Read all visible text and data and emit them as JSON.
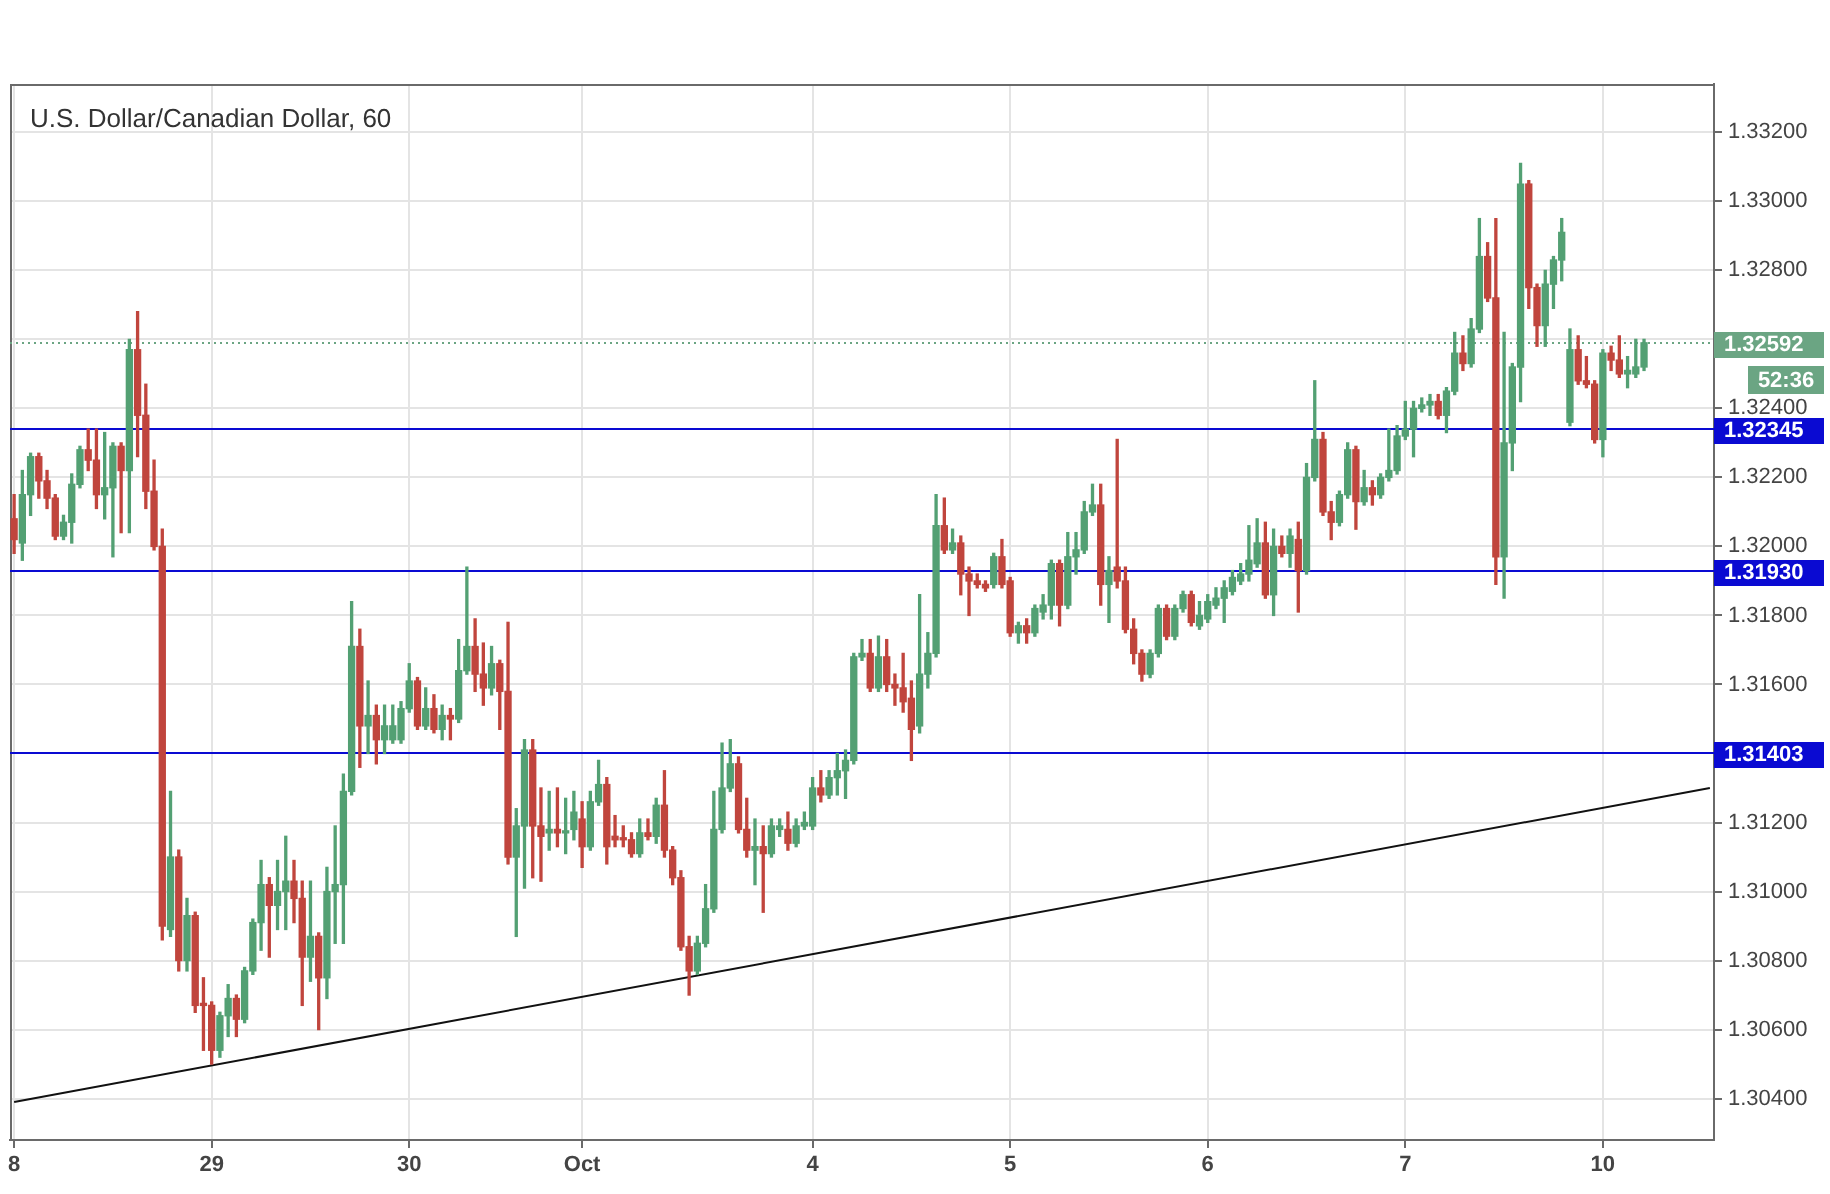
{
  "chart_data": {
    "type": "candlestick",
    "title": "U.S. Dollar/Canadian Dollar, 60",
    "categories": [
      "8",
      null,
      null,
      null,
      null,
      null,
      null,
      null,
      null,
      null,
      null,
      null,
      null,
      null,
      null,
      null,
      null,
      null,
      null,
      null,
      null,
      null,
      null,
      null,
      "29",
      null,
      null,
      null,
      null,
      null,
      null,
      null,
      null,
      null,
      null,
      null,
      null,
      null,
      null,
      null,
      null,
      null,
      null,
      null,
      null,
      null,
      null,
      null,
      "30",
      null,
      null,
      null,
      null,
      null,
      null,
      null,
      null,
      null,
      null,
      null,
      null,
      null,
      null,
      null,
      null,
      null,
      null,
      null,
      null,
      "Oct",
      null,
      null,
      null,
      null,
      null,
      null,
      null,
      null,
      null,
      null,
      null,
      null,
      null,
      null,
      null,
      null,
      null,
      null,
      null,
      null,
      null,
      null,
      null,
      null,
      null,
      null,
      null,
      "4",
      null,
      null,
      null,
      null,
      null,
      null,
      null,
      null,
      null,
      null,
      null,
      null,
      null,
      null,
      null,
      null,
      null,
      null,
      null,
      null,
      null,
      null,
      null,
      "5",
      null,
      null,
      null,
      null,
      null,
      null,
      null,
      null,
      null,
      null,
      null,
      null,
      null,
      null,
      null,
      null,
      null,
      null,
      null,
      null,
      null,
      null,
      null,
      "6",
      null,
      null,
      null,
      null,
      null,
      null,
      null,
      null,
      null,
      null,
      null,
      null,
      null,
      null,
      null,
      null,
      null,
      null,
      null,
      null,
      null,
      null,
      null,
      "7",
      null,
      null,
      null,
      null,
      null,
      null,
      null,
      null,
      null,
      null,
      null,
      null,
      null,
      null,
      null,
      null,
      null,
      null,
      null,
      null,
      null,
      null,
      null,
      "10",
      null,
      null,
      null,
      null,
      null,
      null,
      null,
      null,
      null,
      null,
      null,
      null,
      null
    ],
    "ohlc": [
      [
        1.3208,
        1.3215,
        1.3198,
        1.3202
      ],
      [
        1.3201,
        1.3222,
        1.3196,
        1.3215
      ],
      [
        1.3215,
        1.3227,
        1.3209,
        1.3226
      ],
      [
        1.3226,
        1.3227,
        1.3214,
        1.3219
      ],
      [
        1.3219,
        1.3222,
        1.3211,
        1.3214
      ],
      [
        1.3214,
        1.3215,
        1.3202,
        1.3203
      ],
      [
        1.3203,
        1.3209,
        1.3202,
        1.3207
      ],
      [
        1.3207,
        1.3221,
        1.3201,
        1.3218
      ],
      [
        1.3218,
        1.3229,
        1.3217,
        1.3228
      ],
      [
        1.3228,
        1.3234,
        1.3222,
        1.3225
      ],
      [
        1.3225,
        1.3234,
        1.3211,
        1.3215
      ],
      [
        1.3215,
        1.3233,
        1.3208,
        1.3217
      ],
      [
        1.3217,
        1.323,
        1.3197,
        1.3229
      ],
      [
        1.3229,
        1.323,
        1.3204,
        1.3222
      ],
      [
        1.3222,
        1.326,
        1.3204,
        1.3257
      ],
      [
        1.3257,
        1.3268,
        1.3226,
        1.3238
      ],
      [
        1.3238,
        1.3247,
        1.3211,
        1.3216
      ],
      [
        1.3216,
        1.3225,
        1.3199,
        1.32
      ],
      [
        1.32,
        1.3205,
        1.3086,
        1.309
      ],
      [
        1.3089,
        1.3129,
        1.3087,
        1.311
      ],
      [
        1.311,
        1.3112,
        1.3077,
        1.308
      ],
      [
        1.308,
        1.3098,
        1.3077,
        1.3093
      ],
      [
        1.3093,
        1.3094,
        1.3065,
        1.3067
      ],
      [
        1.3067,
        1.3075,
        1.3054,
        1.3067
      ],
      [
        1.3067,
        1.3068,
        1.305,
        1.3054
      ],
      [
        1.3054,
        1.3065,
        1.3052,
        1.3064
      ],
      [
        1.3064,
        1.3073,
        1.3058,
        1.3069
      ],
      [
        1.3069,
        1.307,
        1.3058,
        1.3063
      ],
      [
        1.3063,
        1.3078,
        1.3062,
        1.3077
      ],
      [
        1.3077,
        1.3092,
        1.3076,
        1.3091
      ],
      [
        1.3091,
        1.3109,
        1.3083,
        1.3102
      ],
      [
        1.3102,
        1.3104,
        1.3081,
        1.3096
      ],
      [
        1.3096,
        1.3109,
        1.3089,
        1.31
      ],
      [
        1.31,
        1.3116,
        1.3089,
        1.3103
      ],
      [
        1.3103,
        1.3109,
        1.3091,
        1.3098
      ],
      [
        1.3098,
        1.3103,
        1.3067,
        1.3081
      ],
      [
        1.3081,
        1.3103,
        1.3074,
        1.3087
      ],
      [
        1.3087,
        1.3088,
        1.306,
        1.3075
      ],
      [
        1.3075,
        1.3107,
        1.3069,
        1.31
      ],
      [
        1.31,
        1.3119,
        1.3085,
        1.3102
      ],
      [
        1.3102,
        1.3134,
        1.3085,
        1.3129
      ],
      [
        1.3129,
        1.3184,
        1.3128,
        1.3171
      ],
      [
        1.3171,
        1.3176,
        1.3136,
        1.3148
      ],
      [
        1.3148,
        1.3161,
        1.314,
        1.3151
      ],
      [
        1.3151,
        1.3154,
        1.3137,
        1.3144
      ],
      [
        1.3144,
        1.3154,
        1.314,
        1.3148
      ],
      [
        1.3144,
        1.3154,
        1.3143,
        1.3148
      ],
      [
        1.3144,
        1.3155,
        1.3143,
        1.3153
      ],
      [
        1.3153,
        1.3166,
        1.3152,
        1.3161
      ],
      [
        1.3161,
        1.3162,
        1.3147,
        1.3148
      ],
      [
        1.3148,
        1.3159,
        1.3147,
        1.3153
      ],
      [
        1.3153,
        1.3157,
        1.3146,
        1.3147
      ],
      [
        1.3147,
        1.3154,
        1.3144,
        1.3151
      ],
      [
        1.3151,
        1.3153,
        1.3144,
        1.315
      ],
      [
        1.315,
        1.3173,
        1.3149,
        1.3164
      ],
      [
        1.3164,
        1.3194,
        1.3163,
        1.3171
      ],
      [
        1.3171,
        1.3179,
        1.3158,
        1.3163
      ],
      [
        1.3163,
        1.3172,
        1.3154,
        1.3159
      ],
      [
        1.3159,
        1.3171,
        1.3157,
        1.3166
      ],
      [
        1.3166,
        1.3167,
        1.3147,
        1.3158
      ],
      [
        1.3158,
        1.3178,
        1.3108,
        1.311
      ],
      [
        1.311,
        1.3124,
        1.3087,
        1.3119
      ],
      [
        1.3119,
        1.3144,
        1.3101,
        1.3141
      ],
      [
        1.3141,
        1.3144,
        1.3104,
        1.3119
      ],
      [
        1.3119,
        1.313,
        1.3103,
        1.3116
      ],
      [
        1.3117,
        1.3129,
        1.3112,
        1.3118
      ],
      [
        1.3118,
        1.313,
        1.3113,
        1.3117
      ],
      [
        1.3117,
        1.3127,
        1.3111,
        1.3117
      ],
      [
        1.3118,
        1.3129,
        1.3115,
        1.3123
      ],
      [
        1.3121,
        1.3126,
        1.3107,
        1.3113
      ],
      [
        1.3113,
        1.3129,
        1.3112,
        1.3126
      ],
      [
        1.3126,
        1.3138,
        1.3125,
        1.3131
      ],
      [
        1.3131,
        1.3133,
        1.3108,
        1.3113
      ],
      [
        1.3116,
        1.3122,
        1.3113,
        1.3115
      ],
      [
        1.3115,
        1.3119,
        1.3113,
        1.3115
      ],
      [
        1.3115,
        1.3117,
        1.311,
        1.3111
      ],
      [
        1.3111,
        1.3121,
        1.311,
        1.3117
      ],
      [
        1.3117,
        1.3121,
        1.3115,
        1.3116
      ],
      [
        1.3116,
        1.3127,
        1.3114,
        1.3125
      ],
      [
        1.3125,
        1.3135,
        1.311,
        1.3112
      ],
      [
        1.3112,
        1.3113,
        1.3102,
        1.3104
      ],
      [
        1.3104,
        1.3106,
        1.3083,
        1.3084
      ],
      [
        1.3084,
        1.3087,
        1.307,
        1.3077
      ],
      [
        1.3077,
        1.3087,
        1.3076,
        1.3085
      ],
      [
        1.3085,
        1.3102,
        1.3084,
        1.3095
      ],
      [
        1.3095,
        1.3129,
        1.3094,
        1.3118
      ],
      [
        1.3118,
        1.3143,
        1.3117,
        1.313
      ],
      [
        1.313,
        1.3144,
        1.3129,
        1.3137
      ],
      [
        1.3137,
        1.3139,
        1.3117,
        1.3118
      ],
      [
        1.3118,
        1.3127,
        1.311,
        1.3112
      ],
      [
        1.3112,
        1.3121,
        1.3102,
        1.3113
      ],
      [
        1.3113,
        1.3119,
        1.3094,
        1.3111
      ],
      [
        1.3111,
        1.3121,
        1.311,
        1.3119
      ],
      [
        1.3118,
        1.3121,
        1.3116,
        1.3119
      ],
      [
        1.3118,
        1.3123,
        1.3112,
        1.3114
      ],
      [
        1.3114,
        1.3121,
        1.3113,
        1.3119
      ],
      [
        1.3119,
        1.3123,
        1.3118,
        1.312
      ],
      [
        1.3119,
        1.3133,
        1.3118,
        1.313
      ],
      [
        1.313,
        1.3135,
        1.3126,
        1.3128
      ],
      [
        1.3128,
        1.3135,
        1.3127,
        1.3133
      ],
      [
        1.3133,
        1.314,
        1.3128,
        1.3135
      ],
      [
        1.3135,
        1.3141,
        1.3127,
        1.3138
      ],
      [
        1.3138,
        1.3169,
        1.3137,
        1.3168
      ],
      [
        1.3168,
        1.3173,
        1.3167,
        1.3169
      ],
      [
        1.3169,
        1.3173,
        1.3158,
        1.3159
      ],
      [
        1.3159,
        1.3174,
        1.3158,
        1.3168
      ],
      [
        1.3168,
        1.3173,
        1.3158,
        1.316
      ],
      [
        1.316,
        1.3163,
        1.3154,
        1.3159
      ],
      [
        1.3159,
        1.3169,
        1.3152,
        1.3155
      ],
      [
        1.3156,
        1.3161,
        1.3138,
        1.3147
      ],
      [
        1.3148,
        1.3186,
        1.3146,
        1.3163
      ],
      [
        1.3163,
        1.3175,
        1.3159,
        1.3169
      ],
      [
        1.3169,
        1.3215,
        1.3168,
        1.3206
      ],
      [
        1.3206,
        1.3214,
        1.3198,
        1.3199
      ],
      [
        1.3199,
        1.3205,
        1.3198,
        1.3201
      ],
      [
        1.3201,
        1.3203,
        1.3186,
        1.3192
      ],
      [
        1.3192,
        1.3194,
        1.318,
        1.319
      ],
      [
        1.319,
        1.3192,
        1.3188,
        1.3189
      ],
      [
        1.3189,
        1.319,
        1.3187,
        1.3188
      ],
      [
        1.3189,
        1.3198,
        1.3188,
        1.3197
      ],
      [
        1.3197,
        1.3202,
        1.3188,
        1.3189
      ],
      [
        1.319,
        1.3191,
        1.3174,
        1.3175
      ],
      [
        1.3175,
        1.3178,
        1.3172,
        1.3177
      ],
      [
        1.3177,
        1.3179,
        1.3172,
        1.3175
      ],
      [
        1.3175,
        1.3183,
        1.3174,
        1.3182
      ],
      [
        1.3181,
        1.3186,
        1.3179,
        1.3183
      ],
      [
        1.3183,
        1.3196,
        1.3179,
        1.3195
      ],
      [
        1.3195,
        1.3196,
        1.3177,
        1.3183
      ],
      [
        1.3183,
        1.3204,
        1.3182,
        1.3197
      ],
      [
        1.3197,
        1.3204,
        1.3192,
        1.3199
      ],
      [
        1.3199,
        1.3213,
        1.3198,
        1.321
      ],
      [
        1.321,
        1.3218,
        1.3209,
        1.3212
      ],
      [
        1.3212,
        1.3218,
        1.3183,
        1.3189
      ],
      [
        1.3189,
        1.3197,
        1.3178,
        1.3193
      ],
      [
        1.3194,
        1.3231,
        1.3188,
        1.319
      ],
      [
        1.319,
        1.3194,
        1.3175,
        1.3176
      ],
      [
        1.3176,
        1.3179,
        1.3166,
        1.3169
      ],
      [
        1.3169,
        1.317,
        1.3161,
        1.3163
      ],
      [
        1.3163,
        1.317,
        1.3162,
        1.3169
      ],
      [
        1.3169,
        1.3183,
        1.3168,
        1.3182
      ],
      [
        1.3182,
        1.3183,
        1.3173,
        1.3174
      ],
      [
        1.3174,
        1.3183,
        1.3173,
        1.3182
      ],
      [
        1.3182,
        1.3187,
        1.3181,
        1.3186
      ],
      [
        1.3186,
        1.3187,
        1.3177,
        1.3178
      ],
      [
        1.3177,
        1.3184,
        1.3176,
        1.318
      ],
      [
        1.3179,
        1.3186,
        1.3178,
        1.3184
      ],
      [
        1.3183,
        1.3188,
        1.3182,
        1.3185
      ],
      [
        1.3185,
        1.319,
        1.3178,
        1.3188
      ],
      [
        1.3187,
        1.3193,
        1.3186,
        1.3191
      ],
      [
        1.319,
        1.3195,
        1.3189,
        1.3192
      ],
      [
        1.3192,
        1.3206,
        1.319,
        1.3196
      ],
      [
        1.3195,
        1.3208,
        1.3194,
        1.3201
      ],
      [
        1.3201,
        1.3207,
        1.3185,
        1.3186
      ],
      [
        1.3186,
        1.3205,
        1.318,
        1.32
      ],
      [
        1.32,
        1.3203,
        1.3197,
        1.3198
      ],
      [
        1.3198,
        1.3205,
        1.3194,
        1.3203
      ],
      [
        1.3202,
        1.3207,
        1.3181,
        1.3193
      ],
      [
        1.3193,
        1.3224,
        1.3192,
        1.322
      ],
      [
        1.322,
        1.3248,
        1.3219,
        1.3231
      ],
      [
        1.3231,
        1.3233,
        1.3209,
        1.321
      ],
      [
        1.321,
        1.3213,
        1.3202,
        1.3207
      ],
      [
        1.3207,
        1.3216,
        1.3206,
        1.3215
      ],
      [
        1.3215,
        1.323,
        1.3214,
        1.3228
      ],
      [
        1.3228,
        1.3229,
        1.3205,
        1.3213
      ],
      [
        1.3213,
        1.3222,
        1.3212,
        1.3217
      ],
      [
        1.3217,
        1.3219,
        1.3212,
        1.3215
      ],
      [
        1.3215,
        1.3221,
        1.3214,
        1.322
      ],
      [
        1.322,
        1.3234,
        1.3219,
        1.3222
      ],
      [
        1.3222,
        1.3235,
        1.3221,
        1.3232
      ],
      [
        1.3232,
        1.3242,
        1.3231,
        1.3234
      ],
      [
        1.3234,
        1.3242,
        1.3226,
        1.324
      ],
      [
        1.324,
        1.3243,
        1.3239,
        1.3241
      ],
      [
        1.3241,
        1.3244,
        1.3238,
        1.3242
      ],
      [
        1.3242,
        1.3244,
        1.3237,
        1.3238
      ],
      [
        1.3238,
        1.3246,
        1.3233,
        1.3245
      ],
      [
        1.3245,
        1.3262,
        1.3244,
        1.3256
      ],
      [
        1.3256,
        1.3261,
        1.3251,
        1.3253
      ],
      [
        1.3253,
        1.3266,
        1.3252,
        1.3263
      ],
      [
        1.3263,
        1.3295,
        1.3262,
        1.3284
      ],
      [
        1.3284,
        1.3288,
        1.3271,
        1.3272
      ],
      [
        1.3272,
        1.3295,
        1.3189,
        1.3197
      ],
      [
        1.3197,
        1.3262,
        1.3185,
        1.323
      ],
      [
        1.323,
        1.3253,
        1.3222,
        1.3252
      ],
      [
        1.3252,
        1.3311,
        1.3242,
        1.3305
      ],
      [
        1.3305,
        1.3306,
        1.3269,
        1.3275
      ],
      [
        1.3275,
        1.3276,
        1.3258,
        1.3264
      ],
      [
        1.3264,
        1.328,
        1.3258,
        1.3276
      ],
      [
        1.3276,
        1.3284,
        1.3269,
        1.3283
      ],
      [
        1.3283,
        1.3295,
        1.3277,
        1.3291
      ],
      [
        1.3236,
        1.3263,
        1.3235,
        1.3257
      ],
      [
        1.3257,
        1.3261,
        1.3247,
        1.3248
      ],
      [
        1.3248,
        1.3255,
        1.3246,
        1.3247
      ],
      [
        1.3247,
        1.3248,
        1.323,
        1.3231
      ],
      [
        1.3231,
        1.3257,
        1.3226,
        1.3256
      ],
      [
        1.3256,
        1.3258,
        1.3251,
        1.3254
      ],
      [
        1.3254,
        1.3261,
        1.3249,
        1.325
      ],
      [
        1.325,
        1.3255,
        1.3246,
        1.3251
      ],
      [
        1.325,
        1.326,
        1.3249,
        1.3252
      ],
      [
        1.3252,
        1.326,
        1.3251,
        1.3259
      ],
      null,
      null,
      null,
      null,
      null,
      null,
      null,
      null
    ],
    "colors": [
      "#c0453d",
      "#53a073",
      "#53a073",
      "#c0453d",
      "#c0453d",
      "#c0453d",
      "#53a073",
      "#53a073",
      "#53a073",
      "#c0453d",
      "#c0453d",
      "#53a073",
      "#53a073",
      "#c0453d",
      "#53a073",
      "#c0453d",
      "#c0453d",
      "#c0453d",
      "#c0453d",
      "#53a073",
      "#c0453d",
      "#53a073",
      "#c0453d",
      "#c0453d",
      "#c0453d",
      "#53a073",
      "#53a073",
      "#c0453d",
      "#53a073",
      "#53a073",
      "#53a073",
      "#c0453d",
      "#53a073",
      "#53a073",
      "#c0453d",
      "#c0453d",
      "#53a073",
      "#c0453d",
      "#53a073",
      "#53a073",
      "#53a073",
      "#53a073",
      "#c0453d",
      "#53a073",
      "#c0453d",
      "#53a073",
      "#53a073",
      "#53a073",
      "#53a073",
      "#c0453d",
      "#53a073",
      "#c0453d",
      "#53a073",
      "#c0453d",
      "#53a073",
      "#53a073",
      "#c0453d",
      "#c0453d",
      "#53a073",
      "#c0453d",
      "#c0453d",
      "#53a073",
      "#53a073",
      "#c0453d",
      "#c0453d",
      "#53a073",
      "#c0453d",
      "#53a073",
      "#53a073",
      "#c0453d",
      "#53a073",
      "#53a073",
      "#c0453d",
      "#c0453d",
      "#c0453d",
      "#c0453d",
      "#53a073",
      "#c0453d",
      "#53a073",
      "#c0453d",
      "#c0453d",
      "#c0453d",
      "#c0453d",
      "#53a073",
      "#53a073",
      "#53a073",
      "#53a073",
      "#53a073",
      "#c0453d",
      "#c0453d",
      "#53a073",
      "#c0453d",
      "#53a073",
      "#53a073",
      "#c0453d",
      "#53a073",
      "#53a073",
      "#53a073",
      "#c0453d",
      "#53a073",
      "#53a073",
      "#53a073",
      "#53a073",
      "#53a073",
      "#c0453d",
      "#53a073",
      "#c0453d",
      "#c0453d",
      "#c0453d",
      "#c0453d",
      "#53a073",
      "#53a073",
      "#53a073",
      "#c0453d",
      "#53a073",
      "#c0453d",
      "#c0453d",
      "#c0453d",
      "#c0453d",
      "#53a073",
      "#c0453d",
      "#c0453d",
      "#53a073",
      "#c0453d",
      "#53a073",
      "#53a073",
      "#53a073",
      "#c0453d",
      "#53a073",
      "#53a073",
      "#53a073",
      "#53a073",
      "#c0453d",
      "#53a073",
      "#c0453d",
      "#c0453d",
      "#c0453d",
      "#c0453d",
      "#53a073",
      "#53a073",
      "#c0453d",
      "#53a073",
      "#53a073",
      "#c0453d",
      "#53a073",
      "#53a073",
      "#53a073",
      "#53a073",
      "#53a073",
      "#53a073",
      "#53a073",
      "#53a073",
      "#c0453d",
      "#53a073",
      "#c0453d",
      "#53a073",
      "#c0453d",
      "#53a073",
      "#53a073",
      "#c0453d",
      "#c0453d",
      "#53a073",
      "#53a073",
      "#c0453d",
      "#53a073",
      "#c0453d",
      "#53a073",
      "#53a073",
      "#53a073",
      "#53a073",
      "#53a073",
      "#53a073",
      "#53a073",
      "#c0453d",
      "#53a073",
      "#53a073",
      "#c0453d",
      "#53a073",
      "#53a073",
      "#c0453d",
      "#c0453d",
      "#53a073",
      "#53a073",
      "#53a073",
      "#c0453d",
      "#c0453d",
      "#53a073",
      "#53a073",
      "#53a073",
      "#53a073",
      "#c0453d",
      "#c0453d",
      "#c0453d",
      "#53a073",
      "#c0453d",
      "#c0453d",
      "#53a073",
      "#53a073",
      "#53a073",
      null,
      null,
      null,
      null,
      null,
      null,
      null,
      null
    ],
    "series": [
      {
        "type": "line",
        "color": "#111111",
        "values": [
          1.3039,
          null,
          null,
          null,
          null,
          null,
          null,
          null,
          null,
          null,
          null,
          null,
          null,
          null,
          null,
          null,
          null,
          null,
          null,
          null,
          null,
          null,
          null,
          null,
          null,
          null,
          null,
          null,
          null,
          null,
          null,
          null,
          null,
          null,
          null,
          null,
          null,
          null,
          null,
          null,
          null,
          null,
          null,
          null,
          null,
          null,
          null,
          null,
          null,
          null,
          null,
          null,
          null,
          null,
          null,
          null,
          null,
          null,
          null,
          null,
          null,
          null,
          null,
          null,
          null,
          null,
          null,
          null,
          null,
          null,
          null,
          null,
          null,
          null,
          null,
          null,
          null,
          null,
          null,
          null,
          null,
          null,
          null,
          null,
          null,
          null,
          null,
          null,
          null,
          null,
          null,
          null,
          null,
          null,
          null,
          null,
          null,
          null,
          null,
          null,
          null,
          null,
          null,
          null,
          null,
          null,
          null,
          null,
          null,
          null,
          null,
          null,
          null,
          null,
          null,
          null,
          null,
          null,
          null,
          null,
          null,
          null,
          null,
          null,
          null,
          null,
          null,
          null,
          null,
          null,
          null,
          null,
          null,
          null,
          null,
          null,
          null,
          null,
          null,
          null,
          null,
          null,
          null,
          null,
          null,
          null,
          null,
          null,
          null,
          null,
          null,
          null,
          null,
          null,
          null,
          null,
          null,
          null,
          null,
          null,
          null,
          null,
          null,
          null,
          null,
          null,
          null,
          null,
          null,
          null,
          null,
          null,
          null,
          null,
          null,
          null,
          null,
          null,
          null,
          null,
          null,
          null,
          null,
          null,
          null,
          null,
          null,
          null,
          null,
          null,
          null,
          null,
          null,
          null,
          null,
          null,
          null,
          null,
          null,
          null,
          null,
          null,
          null,
          null,
          null,
          null,
          1.313
        ]
      }
    ],
    "ylim": [
      1.3028,
      1.3334
    ],
    "yticks": [
      {
        "value": 1.304,
        "label": "1.30400"
      },
      {
        "value": 1.306,
        "label": "1.30600"
      },
      {
        "value": 1.308,
        "label": "1.30800"
      },
      {
        "value": 1.31,
        "label": "1.31000"
      },
      {
        "value": 1.312,
        "label": "1.31200"
      },
      {
        "value": 1.314,
        "label": null
      },
      {
        "value": 1.316,
        "label": "1.31600"
      },
      {
        "value": 1.318,
        "label": "1.31800"
      },
      {
        "value": 1.32,
        "label": "1.32000"
      },
      {
        "value": 1.322,
        "label": "1.32200"
      },
      {
        "value": 1.324,
        "label": "1.32400"
      },
      {
        "value": 1.326,
        "label": null
      },
      {
        "value": 1.328,
        "label": "1.32800"
      },
      {
        "value": 1.33,
        "label": "1.33000"
      },
      {
        "value": 1.332,
        "label": "1.33200"
      }
    ],
    "grid": true,
    "ref_lines": [
      {
        "axis": "y",
        "value": 1.32592,
        "label": "1.32592",
        "color": "#6ba583",
        "line_style": "dotted"
      },
      {
        "axis": "y",
        "value": 1.32345,
        "label": "1.32345",
        "color": "#0a0ad2"
      },
      {
        "axis": "y",
        "value": 1.3193,
        "label": "1.31930",
        "color": "#0a0ad2"
      },
      {
        "axis": "y",
        "value": 1.31403,
        "label": "1.31403",
        "color": "#0a0ad2"
      }
    ],
    "annotations": [
      "52:36"
    ]
  }
}
